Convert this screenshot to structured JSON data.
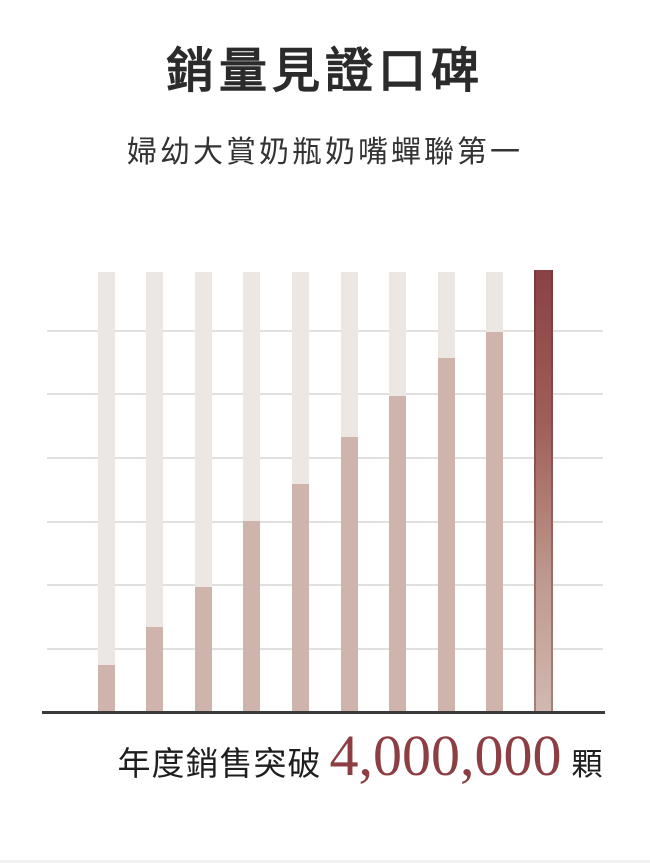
{
  "header": {
    "title": "銷量見證口碑",
    "subtitle": "婦幼大賞奶瓶奶嘴蟬聯第一"
  },
  "caption": {
    "prefix": "年度銷售突破",
    "number": "4,000,000",
    "suffix": "顆"
  },
  "colors": {
    "title_text": "#2b2b2b",
    "subtitle_text": "#333333",
    "caption_text": "#1e1e1e",
    "accent_number": "#8d3e42",
    "bar_track": "#ece7e3",
    "bar_fill": "#cfb4ac",
    "bar_highlight_stops": [
      "#8a4145",
      "#a05f5a",
      "#bf998f",
      "#d2b9b0"
    ],
    "gridline": "#e2dfdf",
    "baseline": "#3b3b3b"
  },
  "chart_data": {
    "type": "bar",
    "title": "銷量見證口碑",
    "subtitle": "婦幼大賞奶瓶奶嘴蟬聯第一",
    "x_labels": [],
    "ylabel": "",
    "values_pct_of_max": [
      11,
      19.5,
      28.5,
      43.5,
      52,
      62.5,
      72,
      80.5,
      86.5,
      100
    ],
    "bar_count": 10,
    "highlight_index": 9,
    "grid": "horizontal, 6 light gridlines, no tick labels",
    "annotation": "年度銷售突破 4,000,000 顆",
    "implied_max_value_label": "4,000,000"
  }
}
